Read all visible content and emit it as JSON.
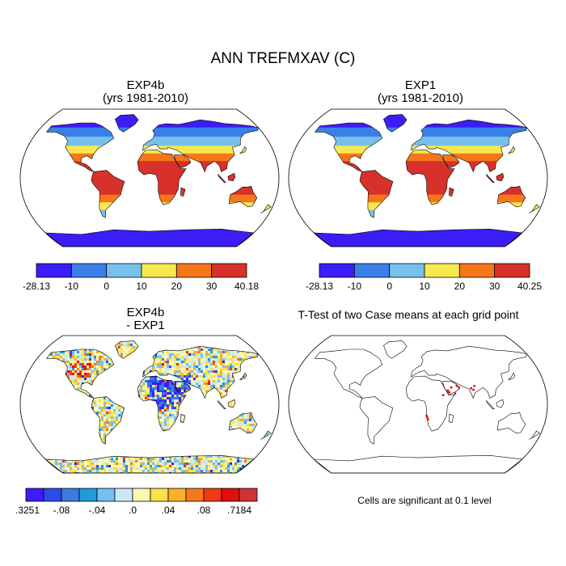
{
  "title": "ANN TREFMXAV (C)",
  "colors": {
    "temp_scale": [
      "#3a1ef5",
      "#3a7fe8",
      "#78c0ec",
      "#f6e84f",
      "#f6761a",
      "#d8312a"
    ],
    "diff_scale": [
      "#3a1ef5",
      "#2d4ce6",
      "#3b7be2",
      "#1f9bd8",
      "#76bff0",
      "#c8e9f5",
      "#fdf8b0",
      "#f8e24c",
      "#f9b02a",
      "#f7781c",
      "#f03a16",
      "#e00f10",
      "#d13234"
    ],
    "significant": "#dd1111",
    "coast": "#000000"
  },
  "panels": [
    {
      "id": "exp4b",
      "title_line1": "EXP4b",
      "title_line2": "(yrs 1981-2010)",
      "fill": "temp",
      "colorbar": {
        "labels": [
          "-28.13",
          "-10",
          "0",
          "10",
          "20",
          "30",
          "40.18"
        ]
      }
    },
    {
      "id": "exp1",
      "title_line1": "EXP1",
      "title_line2": "(yrs 1981-2010)",
      "fill": "temp",
      "colorbar": {
        "labels": [
          "-28.13",
          "-10",
          "0",
          "10",
          "20",
          "30",
          "40.25"
        ]
      }
    },
    {
      "id": "diff",
      "title_line1": "EXP4b",
      "title_line2": "- EXP1",
      "fill": "diff",
      "colorbar": {
        "labels": [
          "-.3251",
          "-.08",
          "-.04",
          ".0",
          ".04",
          ".08",
          ".7184"
        ]
      }
    },
    {
      "id": "ttest",
      "title_line1": "T-Test of two Case means at each grid point",
      "fill": "none",
      "note": "Cells are significant at 0.1 level"
    }
  ]
}
